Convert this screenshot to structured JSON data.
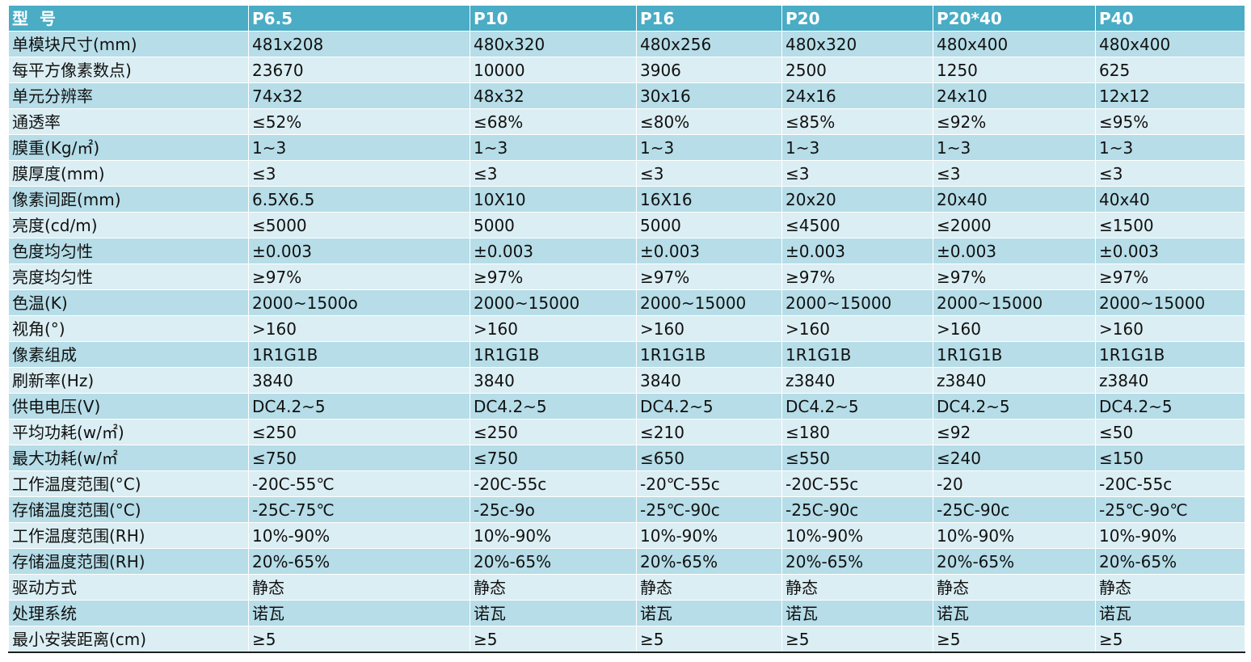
{
  "table": {
    "header": [
      "型号",
      "P6.5",
      "P10",
      "P16",
      "P20",
      "P20*40",
      "P40"
    ],
    "rows": [
      [
        "单模块尺寸(mm)",
        "481x208",
        "480x320",
        "480x256",
        "480x320",
        "480x400",
        "480x400"
      ],
      [
        "每平方像素数点)",
        "23670",
        "10000",
        "3906",
        "2500",
        "1250",
        "625"
      ],
      [
        "单元分辨率",
        "74x32",
        "48x32",
        "30x16",
        "24x16",
        "24x10",
        "12x12"
      ],
      [
        "通透率",
        "≤52%",
        "≤68%",
        "≤80%",
        "≤85%",
        "≤92%",
        "≤95%"
      ],
      [
        "膜重(Kg/㎡)",
        "1~3",
        "1~3",
        "1~3",
        "1~3",
        "1~3",
        "1~3"
      ],
      [
        "膜厚度(mm)",
        "≤3",
        "≤3",
        "≤3",
        "≤3",
        "≤3",
        "≤3"
      ],
      [
        "像素间距(mm)",
        "6.5X6.5",
        "10X10",
        "16X16",
        "20x20",
        "20x40",
        "40x40"
      ],
      [
        "亮度(cd/m)",
        "≤5000",
        "5000",
        "5000",
        "≤4500",
        "≤2000",
        "≤1500"
      ],
      [
        "色度均匀性",
        "±0.003",
        "±0.003",
        "±0.003",
        "±0.003",
        "±0.003",
        "±0.003"
      ],
      [
        "亮度均匀性",
        "≥97%",
        "≥97%",
        "≥97%",
        "≥97%",
        "≥97%",
        "≥97%"
      ],
      [
        "色温(K)",
        "2000~1500o",
        "2000~15000",
        "2000~15000",
        "2000~15000",
        "2000~15000",
        "2000~15000"
      ],
      [
        "视角(°)",
        ">160",
        ">160",
        ">160",
        ">160",
        ">160",
        ">160"
      ],
      [
        "像素组成",
        "1R1G1B",
        "1R1G1B",
        "1R1G1B",
        "1R1G1B",
        "1R1G1B",
        "1R1G1B"
      ],
      [
        "刷新率(Hz)",
        "3840",
        "3840",
        "3840",
        "z3840",
        "z3840",
        "z3840"
      ],
      [
        "供电电压(V)",
        "DC4.2~5",
        "DC4.2~5",
        "DC4.2~5",
        "DC4.2~5",
        "DC4.2~5",
        "DC4.2~5"
      ],
      [
        "平均功耗(w/㎡)",
        "≤250",
        "≤250",
        "≤210",
        "≤180",
        "≤92",
        "≤50"
      ],
      [
        "最大功耗(w/㎡",
        "≤750",
        "≤750",
        "≤650",
        "≤550",
        "≤240",
        "≤150"
      ],
      [
        "工作温度范围(°C)",
        "-20C-55℃",
        "-20C-55c",
        "-20℃-55c",
        "-20C-55c",
        "-20",
        "-20C-55c"
      ],
      [
        "存储温度范围(°C)",
        "-25C-75℃",
        "-25c-9o",
        "-25℃-90c",
        "-25C-90c",
        "-25C-90c",
        "-25℃-9o℃"
      ],
      [
        "工作温度范围(RH)",
        "10%-90%",
        "10%-90%",
        "10%-90%",
        "10%-90%",
        "10%-90%",
        "10%-90%"
      ],
      [
        "存储温度范围(RH)",
        "20%-65%",
        "20%-65%",
        "20%-65%",
        "20%-65%",
        "20%-65%",
        "20%-65%"
      ],
      [
        "驱动方式",
        "静态",
        "静态",
        "静态",
        "静态",
        "静态",
        "静态"
      ],
      [
        "处理系统",
        "诺瓦",
        "诺瓦",
        "诺瓦",
        "诺瓦",
        "诺瓦",
        "诺瓦"
      ],
      [
        "最小安装距离(cm)",
        "≥5",
        "≥5",
        "≥5",
        "≥5",
        "≥5",
        "≥5"
      ]
    ]
  },
  "colors": {
    "header_bg": "#4aacc5",
    "row_dark": "#b6dde8",
    "row_light": "#dbeef3"
  }
}
